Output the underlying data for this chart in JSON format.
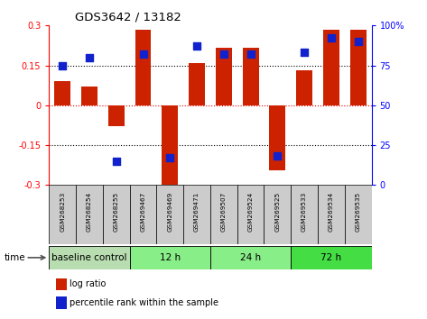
{
  "title": "GDS3642 / 13182",
  "samples": [
    "GSM268253",
    "GSM268254",
    "GSM268255",
    "GSM269467",
    "GSM269469",
    "GSM269471",
    "GSM269507",
    "GSM269524",
    "GSM269525",
    "GSM269533",
    "GSM269534",
    "GSM269535"
  ],
  "log_ratio": [
    0.09,
    0.07,
    -0.08,
    0.285,
    -0.31,
    0.16,
    0.215,
    0.215,
    -0.245,
    0.13,
    0.285,
    0.285
  ],
  "percentile_rank": [
    75,
    80,
    15,
    82,
    17,
    87,
    82,
    82,
    18,
    83,
    92,
    90
  ],
  "bar_color": "#cc2200",
  "dot_color": "#1122cc",
  "ylim": [
    -0.3,
    0.3
  ],
  "y2lim": [
    0,
    100
  ],
  "yticks_left": [
    -0.3,
    -0.15,
    0,
    0.15,
    0.3
  ],
  "ytick_labels_left": [
    "-0.3",
    "-0.15",
    "0",
    "0.15",
    "0.3"
  ],
  "yticks_right": [
    0,
    25,
    50,
    75,
    100
  ],
  "ytick_labels_right": [
    "0",
    "25",
    "50",
    "75",
    "100%"
  ],
  "groups": [
    {
      "label": "baseline control",
      "start": 0,
      "end": 3,
      "color": "#b8ddb0"
    },
    {
      "label": "12 h",
      "start": 3,
      "end": 6,
      "color": "#88ee88"
    },
    {
      "label": "24 h",
      "start": 6,
      "end": 9,
      "color": "#88ee88"
    },
    {
      "label": "72 h",
      "start": 9,
      "end": 12,
      "color": "#44dd44"
    }
  ],
  "time_label": "time",
  "legend_logratio_label": "log ratio",
  "legend_percentile_label": "percentile rank within the sample",
  "bar_width": 0.6,
  "dot_size": 28,
  "sample_box_color": "#cccccc",
  "bg_color": "#ffffff"
}
